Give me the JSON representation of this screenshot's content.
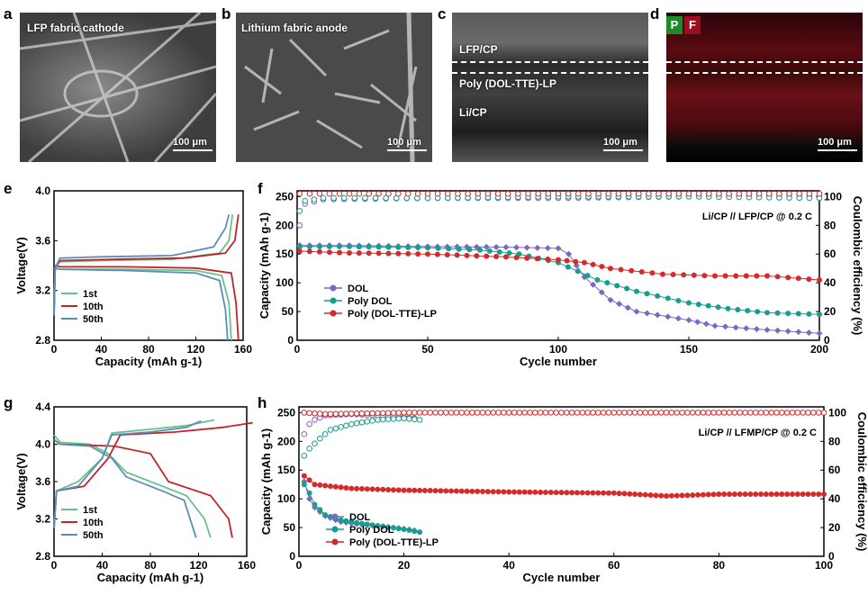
{
  "panels": {
    "a": {
      "letter": "a",
      "label": "LFP fabric cathode",
      "scale": "100 μm"
    },
    "b": {
      "letter": "b",
      "label": "Lithium fabric anode",
      "scale": "100 μm"
    },
    "c": {
      "letter": "c",
      "labels": [
        "LFP/CP",
        "Poly (DOL-TTE)-LP",
        "Li/CP"
      ],
      "scale": "100 μm"
    },
    "d": {
      "letter": "d",
      "badges": [
        "P",
        "F"
      ],
      "scale": "100 μm",
      "colors": {
        "P": "#1f8a2a",
        "F": "#9a1020"
      }
    },
    "e": {
      "letter": "e"
    },
    "f": {
      "letter": "f"
    },
    "g": {
      "letter": "g"
    },
    "h": {
      "letter": "h"
    }
  },
  "chart_data": [
    {
      "id": "e",
      "type": "line",
      "xlabel": "Capacity (mAh g-1)",
      "ylabel": "Voltage(V)",
      "xlim": [
        0,
        160
      ],
      "ylim": [
        2.8,
        4.0
      ],
      "xticks": [
        0,
        40,
        80,
        120,
        160
      ],
      "yticks": [
        2.8,
        3.2,
        3.6,
        4.0
      ],
      "legend": [
        "1st",
        "10th",
        "50th"
      ],
      "colors": {
        "1st": "#6cc08b",
        "10th": "#c0242a",
        "50th": "#5a8fb5"
      },
      "series": [
        {
          "name": "1st",
          "charge": [
            [
              0,
              3.0
            ],
            [
              1,
              3.38
            ],
            [
              5,
              3.43
            ],
            [
              40,
              3.44
            ],
            [
              100,
              3.45
            ],
            [
              140,
              3.5
            ],
            [
              148,
              3.6
            ],
            [
              151,
              3.81
            ]
          ],
          "discharge": [
            [
              0,
              3.38
            ],
            [
              5,
              3.37
            ],
            [
              60,
              3.37
            ],
            [
              120,
              3.36
            ],
            [
              142,
              3.32
            ],
            [
              148,
              3.1
            ],
            [
              150,
              2.8
            ]
          ]
        },
        {
          "name": "10th",
          "charge": [
            [
              0,
              3.0
            ],
            [
              1,
              3.39
            ],
            [
              5,
              3.44
            ],
            [
              50,
              3.45
            ],
            [
              110,
              3.46
            ],
            [
              145,
              3.5
            ],
            [
              153,
              3.6
            ],
            [
              156,
              3.81
            ]
          ],
          "discharge": [
            [
              0,
              3.4
            ],
            [
              5,
              3.39
            ],
            [
              60,
              3.39
            ],
            [
              120,
              3.38
            ],
            [
              150,
              3.34
            ],
            [
              154,
              3.1
            ],
            [
              156,
              2.8
            ]
          ]
        },
        {
          "name": "50th",
          "charge": [
            [
              0,
              3.0
            ],
            [
              1,
              3.38
            ],
            [
              5,
              3.46
            ],
            [
              40,
              3.47
            ],
            [
              100,
              3.48
            ],
            [
              135,
              3.55
            ],
            [
              145,
              3.7
            ],
            [
              148,
              3.81
            ]
          ],
          "discharge": [
            [
              0,
              3.38
            ],
            [
              5,
              3.37
            ],
            [
              60,
              3.36
            ],
            [
              120,
              3.34
            ],
            [
              140,
              3.28
            ],
            [
              145,
              3.05
            ],
            [
              147,
              2.8
            ]
          ]
        }
      ]
    },
    {
      "id": "f",
      "type": "scatter",
      "xlabel": "Cycle number",
      "ylabel": "Capacity (mAh g-1)",
      "y2label": "Coulombic efficiency (%)",
      "xlim": [
        0,
        200
      ],
      "ylim": [
        0,
        260
      ],
      "y2lim": [
        0,
        104
      ],
      "xticks": [
        0,
        50,
        100,
        150,
        200
      ],
      "yticks": [
        0,
        50,
        100,
        150,
        200,
        250
      ],
      "y2ticks": [
        0,
        20,
        40,
        60,
        80,
        100
      ],
      "annotation": "Li/CP // LFP/CP @ 0.2 C",
      "legend": [
        "DOL",
        "Poly DOL",
        "Poly (DOL-TTE)-LP"
      ],
      "colors": {
        "DOL": "#7b68c0",
        "Poly DOL": "#1a9c8e",
        "Poly (DOL-TTE)-LP": "#d42a2a"
      },
      "capacity": {
        "DOL": [
          [
            1,
            165
          ],
          [
            20,
            165
          ],
          [
            50,
            163
          ],
          [
            80,
            162
          ],
          [
            100,
            160
          ],
          [
            104,
            150
          ],
          [
            110,
            110
          ],
          [
            120,
            70
          ],
          [
            130,
            50
          ],
          [
            150,
            35
          ],
          [
            160,
            25
          ],
          [
            180,
            18
          ],
          [
            200,
            12
          ]
        ],
        "Poly DOL": [
          [
            1,
            163
          ],
          [
            20,
            163
          ],
          [
            50,
            161
          ],
          [
            70,
            157
          ],
          [
            85,
            150
          ],
          [
            100,
            135
          ],
          [
            115,
            105
          ],
          [
            130,
            85
          ],
          [
            150,
            65
          ],
          [
            165,
            55
          ],
          [
            180,
            48
          ],
          [
            200,
            45
          ]
        ],
        "Poly (DOL-TTE)-LP": [
          [
            1,
            155
          ],
          [
            20,
            152
          ],
          [
            50,
            150
          ],
          [
            80,
            145
          ],
          [
            100,
            140
          ],
          [
            110,
            135
          ],
          [
            120,
            125
          ],
          [
            140,
            115
          ],
          [
            160,
            112
          ],
          [
            180,
            112
          ],
          [
            200,
            105
          ]
        ]
      },
      "ce": {
        "DOL": [
          [
            1,
            80
          ],
          [
            3,
            95
          ],
          [
            10,
            98
          ],
          [
            50,
            99
          ],
          [
            100,
            99
          ],
          [
            150,
            100
          ],
          [
            200,
            100
          ]
        ],
        "Poly DOL": [
          [
            1,
            90
          ],
          [
            3,
            97
          ],
          [
            10,
            99
          ],
          [
            50,
            99
          ],
          [
            100,
            100
          ],
          [
            150,
            100
          ],
          [
            200,
            99
          ]
        ],
        "Poly (DOL-TTE)-LP": [
          [
            1,
            102
          ],
          [
            20,
            102
          ],
          [
            50,
            102
          ],
          [
            100,
            102
          ],
          [
            150,
            102
          ],
          [
            200,
            102
          ]
        ]
      }
    },
    {
      "id": "g",
      "type": "line",
      "xlabel": "Capacity (mAh g-1)",
      "ylabel": "Voltage(V)",
      "xlim": [
        0,
        160
      ],
      "ylim": [
        2.8,
        4.4
      ],
      "xticks": [
        0,
        40,
        80,
        120,
        160
      ],
      "yticks": [
        2.8,
        3.2,
        3.6,
        4.0,
        4.4
      ],
      "legend": [
        "1st",
        "10th",
        "50th"
      ],
      "colors": {
        "1st": "#6cc08b",
        "10th": "#c0242a",
        "50th": "#5a8fb5"
      },
      "series": [
        {
          "name": "1st",
          "charge": [
            [
              0,
              3.1
            ],
            [
              2,
              3.5
            ],
            [
              20,
              3.6
            ],
            [
              40,
              3.85
            ],
            [
              48,
              4.12
            ],
            [
              80,
              4.16
            ],
            [
              110,
              4.2
            ],
            [
              133,
              4.26
            ]
          ],
          "discharge": [
            [
              0,
              4.1
            ],
            [
              5,
              4.02
            ],
            [
              30,
              4.0
            ],
            [
              45,
              3.9
            ],
            [
              60,
              3.7
            ],
            [
              90,
              3.55
            ],
            [
              110,
              3.45
            ],
            [
              125,
              3.2
            ],
            [
              130,
              3.0
            ]
          ]
        },
        {
          "name": "10th",
          "charge": [
            [
              0,
              3.1
            ],
            [
              2,
              3.5
            ],
            [
              25,
              3.55
            ],
            [
              45,
              3.85
            ],
            [
              55,
              4.1
            ],
            [
              100,
              4.13
            ],
            [
              140,
              4.18
            ],
            [
              165,
              4.23
            ]
          ],
          "discharge": [
            [
              0,
              4.05
            ],
            [
              5,
              4.0
            ],
            [
              50,
              3.98
            ],
            [
              80,
              3.9
            ],
            [
              95,
              3.6
            ],
            [
              130,
              3.45
            ],
            [
              145,
              3.2
            ],
            [
              148,
              3.0
            ]
          ]
        },
        {
          "name": "50th",
          "charge": [
            [
              0,
              3.1
            ],
            [
              2,
              3.5
            ],
            [
              20,
              3.55
            ],
            [
              40,
              3.85
            ],
            [
              48,
              4.1
            ],
            [
              80,
              4.13
            ],
            [
              110,
              4.18
            ],
            [
              122,
              4.25
            ]
          ],
          "discharge": [
            [
              0,
              4.05
            ],
            [
              5,
              4.0
            ],
            [
              30,
              3.98
            ],
            [
              48,
              3.85
            ],
            [
              60,
              3.65
            ],
            [
              90,
              3.5
            ],
            [
              108,
              3.4
            ],
            [
              118,
              3.0
            ]
          ]
        }
      ]
    },
    {
      "id": "h",
      "type": "scatter",
      "xlabel": "Cycle number",
      "ylabel": "Capacity (mAh g-1)",
      "y2label": "Coulombic efficiency (%)",
      "xlim": [
        0,
        100
      ],
      "ylim": [
        0,
        260
      ],
      "y2lim": [
        0,
        104
      ],
      "xticks": [
        0,
        20,
        40,
        60,
        80,
        100
      ],
      "yticks": [
        0,
        50,
        100,
        150,
        200,
        250
      ],
      "y2ticks": [
        0,
        20,
        40,
        60,
        80,
        100
      ],
      "annotation": "Li/CP // LFMP/CP @ 0.2 C",
      "legend": [
        "DOL",
        "Poly DOL",
        "Poly (DOL-TTE)-LP"
      ],
      "colors": {
        "DOL": "#7b68c0",
        "Poly DOL": "#1a9c8e",
        "Poly (DOL-TTE)-LP": "#d42a2a"
      },
      "capacity": {
        "DOL": [
          [
            1,
            130
          ],
          [
            2,
            100
          ],
          [
            3,
            85
          ],
          [
            5,
            70
          ],
          [
            8,
            60
          ],
          [
            12,
            55
          ],
          [
            16,
            52
          ],
          [
            20,
            48
          ],
          [
            22,
            45
          ]
        ],
        "Poly DOL": [
          [
            1,
            125
          ],
          [
            2,
            110
          ],
          [
            3,
            90
          ],
          [
            5,
            72
          ],
          [
            8,
            63
          ],
          [
            12,
            57
          ],
          [
            16,
            52
          ],
          [
            20,
            47
          ],
          [
            23,
            42
          ]
        ],
        "Poly (DOL-TTE)-LP": [
          [
            1,
            140
          ],
          [
            3,
            125
          ],
          [
            10,
            118
          ],
          [
            20,
            115
          ],
          [
            40,
            112
          ],
          [
            60,
            110
          ],
          [
            70,
            105
          ],
          [
            80,
            108
          ],
          [
            100,
            108
          ]
        ]
      },
      "ce": {
        "DOL": [
          [
            1,
            85
          ],
          [
            2,
            92
          ],
          [
            3,
            95
          ],
          [
            5,
            98
          ],
          [
            10,
            99
          ],
          [
            20,
            97
          ],
          [
            22,
            96
          ]
        ],
        "Poly DOL": [
          [
            1,
            70
          ],
          [
            2,
            75
          ],
          [
            4,
            82
          ],
          [
            6,
            88
          ],
          [
            10,
            92
          ],
          [
            15,
            95
          ],
          [
            20,
            96
          ],
          [
            23,
            95
          ]
        ],
        "Poly (DOL-TTE)-LP": [
          [
            1,
            100
          ],
          [
            5,
            99
          ],
          [
            20,
            100
          ],
          [
            40,
            100
          ],
          [
            60,
            100
          ],
          [
            80,
            100
          ],
          [
            100,
            100
          ]
        ]
      }
    }
  ]
}
